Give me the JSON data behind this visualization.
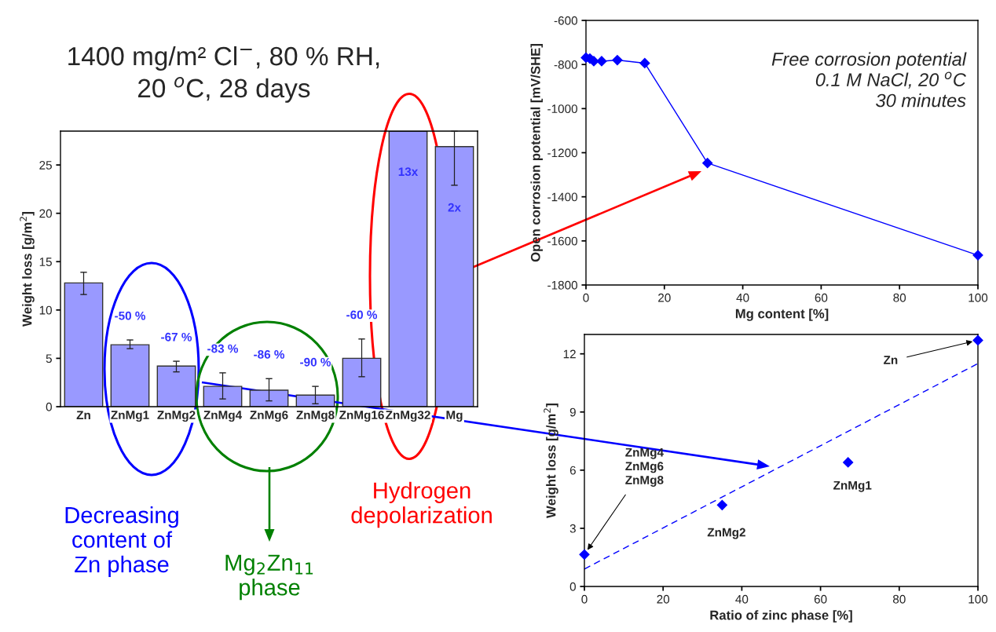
{
  "chart_data": [
    {
      "type": "bar",
      "title": "1400 mg/m² Cl$^{−}$, 80 % RH,\n20 $^{o}$C, 28 days",
      "ylabel": "Weight loss [g/m$^{2}$]",
      "categories": [
        "Zn",
        "ZnMg1",
        "ZnMg2",
        "ZnMg4",
        "ZnMg6",
        "ZnMg8",
        "ZnMg16",
        "ZnMg32",
        "Mg"
      ],
      "values": [
        12.8,
        6.4,
        4.2,
        2.1,
        1.7,
        1.2,
        5.0,
        28.5,
        26.9
      ],
      "errors": [
        [
          11.6,
          13.9
        ],
        [
          6.0,
          6.9
        ],
        [
          3.6,
          4.7
        ],
        [
          0.8,
          3.5
        ],
        [
          0.6,
          2.9
        ],
        [
          0.3,
          2.1
        ],
        [
          3.1,
          7.0
        ],
        null,
        [
          22.9,
          28.5
        ]
      ],
      "color": "#9999ff",
      "ylim": [
        0,
        28.5
      ],
      "yticks": [
        0,
        5,
        10,
        15,
        20,
        25
      ],
      "annotations": [
        "-50 %",
        "-67 %",
        "-83 %",
        "-86 %",
        "-90 %",
        "-60 %",
        "13x",
        "2x",
        "Decreasing\ncontent of\nZn phase",
        "Mg$_{2}$Zn$_{11}$\nphase",
        "Hydrogen\ndepolarization"
      ]
    },
    {
      "type": "line",
      "xlabel": "Mg content [%]",
      "ylabel": "Open corrosion potential [mV/SHE]",
      "x": [
        0,
        1,
        2,
        4,
        8,
        15,
        31,
        100
      ],
      "series": [
        {
          "color": "#0000ff",
          "values": [
            -769,
            -773,
            -785,
            -785,
            -780,
            -794,
            -1247,
            -1665
          ]
        }
      ],
      "marker": "diamond",
      "xlim": [
        0,
        100
      ],
      "ylim": [
        -1800,
        -600
      ],
      "xticks": [
        0,
        20,
        40,
        60,
        80,
        100
      ],
      "yticks": [
        -1800,
        -1600,
        -1400,
        -1200,
        -1000,
        -800,
        -600
      ],
      "annotations": [
        "Free corrosion potential\n0.1 M NaCl, 20 $^{o}$C\n30 minutes"
      ]
    },
    {
      "type": "scatter",
      "xlabel": "Ratio of zinc phase [%]",
      "ylabel": "Weight loss [g/m$^{2}$]",
      "x": [
        0,
        35,
        67,
        100
      ],
      "series": [
        {
          "type": "scatter",
          "color": "#0000ff",
          "marker": "diamond",
          "values": [
            1.65,
            4.2,
            6.4,
            12.7
          ]
        },
        {
          "type": "line",
          "color": "#0000ff",
          "line_style": "dashed",
          "x": [
            0,
            100
          ],
          "values": [
            0.9,
            11.5
          ]
        }
      ],
      "xlim": [
        0,
        100
      ],
      "ylim": [
        0,
        13
      ],
      "xticks": [
        0,
        20,
        40,
        60,
        80,
        100
      ],
      "yticks": [
        0,
        3,
        6,
        9,
        12
      ],
      "annotations": [
        {
          "text": "Zn",
          "x": 100,
          "y": 12.7
        },
        {
          "text": "ZnMg1",
          "x": 67,
          "y": 6.4
        },
        {
          "text": "ZnMg2",
          "x": 35,
          "y": 4.2
        },
        {
          "text": "ZnMg4\nZnMg6\nZnMg8",
          "x": 0,
          "y": 1.65
        }
      ]
    }
  ]
}
